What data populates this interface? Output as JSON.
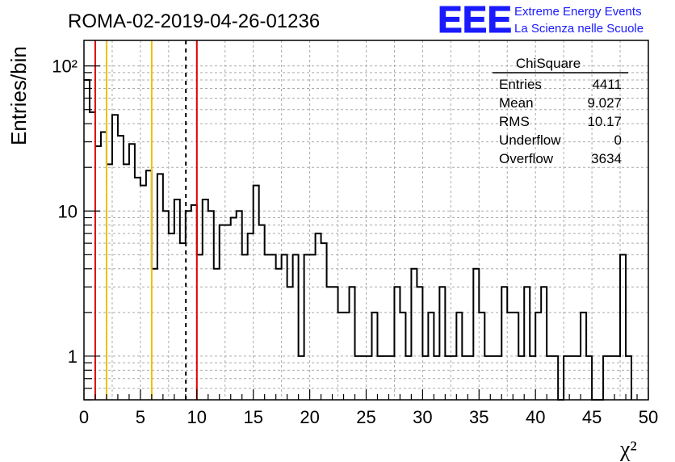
{
  "header": {
    "run_title": "ROMA-02-2019-04-26-01236",
    "logo_text": "EEE",
    "logo_line1": "Extreme Energy Events",
    "logo_line2": "La Scienza nelle Scuole"
  },
  "stats_box": {
    "title": "ChiSquare",
    "rows": [
      {
        "label": "Entries",
        "value": "4411"
      },
      {
        "label": "Mean",
        "value": "9.027"
      },
      {
        "label": "RMS",
        "value": "10.17"
      },
      {
        "label": "Underflow",
        "value": "0"
      },
      {
        "label": "Overflow",
        "value": "3634"
      }
    ]
  },
  "colors": {
    "histogram": "#000000",
    "red_line": "#e00000",
    "yellow_line": "#f0c000",
    "mean_line": "#000000",
    "grid": "#aaaaaa",
    "logo": "#1a1aff"
  },
  "chart_data": {
    "type": "bar",
    "title": "ROMA-02-2019-04-26-01236",
    "xlabel": "χ²",
    "ylabel": "Entries/bin",
    "xlim": [
      0,
      50
    ],
    "ylim": [
      0.5,
      150
    ],
    "y_scale": "log",
    "grid": true,
    "x_ticks": [
      "0",
      "5",
      "10",
      "15",
      "20",
      "25",
      "30",
      "35",
      "40",
      "45",
      "50"
    ],
    "y_ticks": [
      {
        "value": 1,
        "label": "1"
      },
      {
        "value": 10,
        "label": "10"
      },
      {
        "value": 100,
        "label": "10²"
      }
    ],
    "bin_width": 0.5,
    "bin_start": 0,
    "values": [
      80,
      48,
      28,
      35,
      21,
      46,
      33,
      21,
      29,
      17,
      15,
      19,
      4,
      18,
      10,
      7,
      12,
      6,
      10,
      11,
      5,
      12,
      10,
      4,
      8,
      8,
      9,
      10,
      5,
      7,
      15,
      8,
      5,
      5,
      4,
      5,
      3,
      5,
      1,
      5,
      5,
      7,
      6,
      3,
      3,
      2,
      2,
      3,
      1,
      1,
      1,
      2,
      1,
      1,
      1,
      3,
      2,
      1,
      4,
      3,
      1,
      2,
      1,
      3,
      1,
      1,
      2,
      1,
      1,
      4,
      2,
      1,
      1,
      1,
      3,
      2,
      2,
      1,
      3,
      1,
      2,
      3,
      1,
      1,
      0,
      1,
      1,
      1,
      2,
      1,
      0,
      0,
      1,
      1,
      1,
      5,
      1
    ],
    "vertical_lines": [
      {
        "x": 1.0,
        "color": "red",
        "style": "solid"
      },
      {
        "x": 2.0,
        "color": "yellow",
        "style": "solid"
      },
      {
        "x": 6.0,
        "color": "yellow",
        "style": "solid"
      },
      {
        "x": 9.027,
        "color": "black",
        "style": "dashed"
      },
      {
        "x": 10.0,
        "color": "red",
        "style": "solid"
      }
    ]
  }
}
